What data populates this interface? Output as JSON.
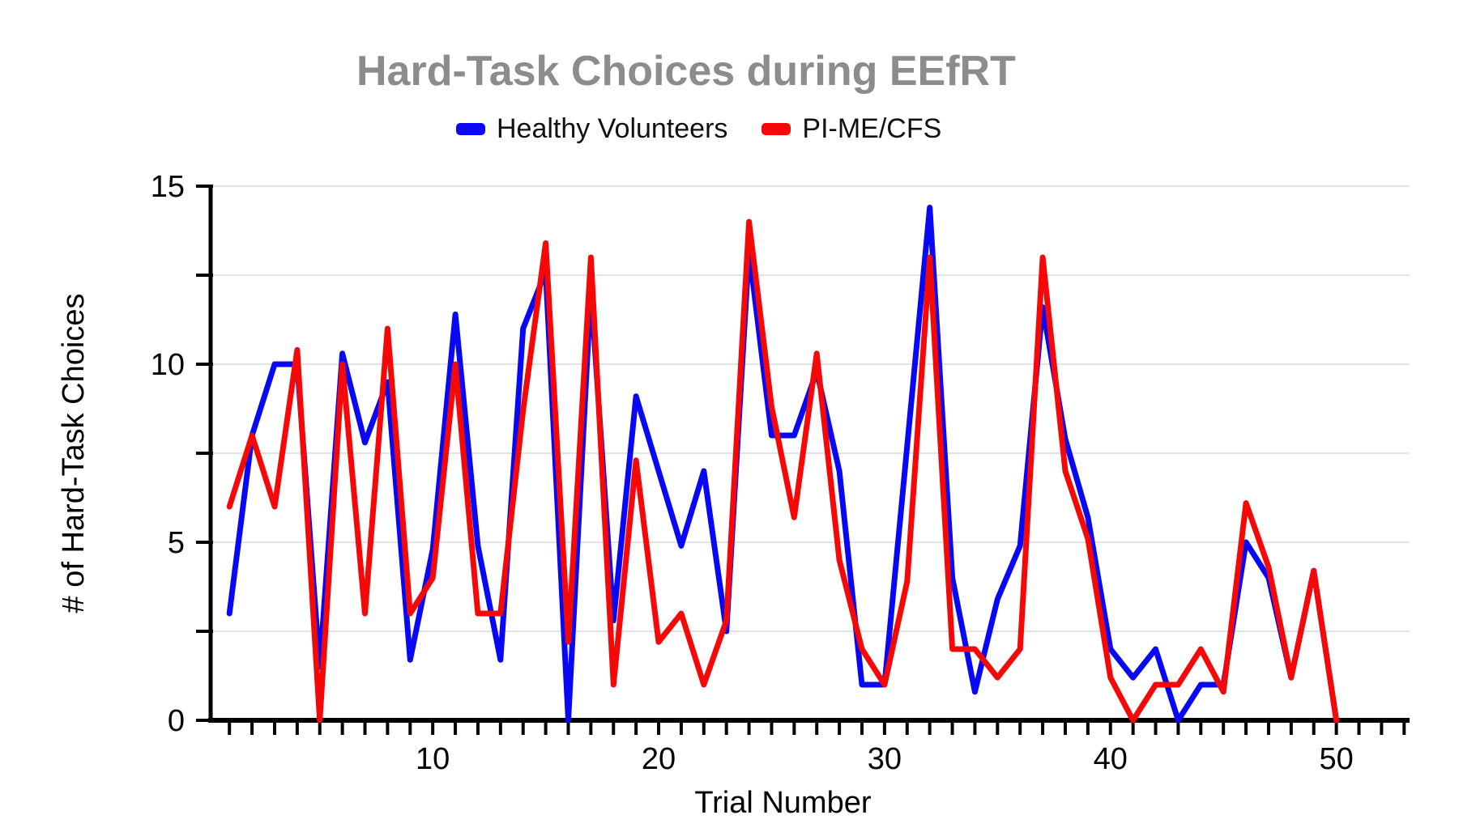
{
  "title": "Hard-Task Choices during EEfRT",
  "legend": [
    {
      "label": "Healthy Volunteers",
      "color": "#0808f5"
    },
    {
      "label": "PI-ME/CFS",
      "color": "#f50808"
    }
  ],
  "colors": {
    "title_gray": "#8c8c8c",
    "gridline": "#e3e3e3",
    "axis": "#000000",
    "healthy_blue": "#0808f5",
    "pime_red": "#f50808"
  },
  "chart_data": {
    "type": "line",
    "title": "Hard-Task Choices during EEfRT",
    "xlabel": "Trial Number",
    "ylabel": "# of Hard-Task Choices",
    "xlim": [
      1,
      50
    ],
    "ylim": [
      0,
      15
    ],
    "grid": "horizontal gridlines every 2.5, light gray",
    "gridline_step": 2.5,
    "legend_position": "top center",
    "yticks_labeled": [
      0,
      5,
      10,
      15
    ],
    "xticks_labeled": [
      10,
      20,
      30,
      40,
      50
    ],
    "x": [
      1,
      2,
      3,
      4,
      5,
      6,
      7,
      8,
      9,
      10,
      11,
      12,
      13,
      14,
      15,
      16,
      17,
      18,
      19,
      20,
      21,
      22,
      23,
      24,
      25,
      26,
      27,
      28,
      29,
      30,
      31,
      32,
      33,
      34,
      35,
      36,
      37,
      38,
      39,
      40,
      41,
      42,
      43,
      44,
      45,
      46,
      47,
      48,
      49,
      50
    ],
    "series": [
      {
        "name": "Healthy Volunteers",
        "color": "#0808f5",
        "values": [
          3,
          8,
          10,
          10,
          1.5,
          10.3,
          7.8,
          9.5,
          1.7,
          4.8,
          11.4,
          4.9,
          1.7,
          11,
          12.6,
          0,
          12.1,
          2.8,
          9.1,
          7,
          4.9,
          7,
          2.5,
          13.2,
          8,
          8,
          9.8,
          7,
          1,
          1,
          7.7,
          14.4,
          4,
          0.8,
          3.4,
          4.9,
          11.6,
          7.9,
          5.7,
          2,
          1.2,
          2,
          0,
          1,
          1,
          5,
          4,
          1.2,
          4.2,
          0
        ]
      },
      {
        "name": "PI-ME/CFS",
        "color": "#f50808",
        "values": [
          6,
          8,
          6,
          10.4,
          0,
          10,
          3,
          11,
          3,
          4,
          10,
          3,
          3,
          8.7,
          13.4,
          2.2,
          13,
          1,
          7.3,
          2.2,
          3,
          1,
          2.8,
          14,
          8.8,
          5.7,
          10.3,
          4.5,
          2,
          1,
          3.9,
          13,
          2,
          2,
          1.2,
          2,
          13,
          7,
          5.1,
          1.2,
          0,
          1,
          1,
          2,
          0.8,
          6.1,
          4.3,
          1.2,
          4.2,
          0
        ]
      }
    ]
  }
}
